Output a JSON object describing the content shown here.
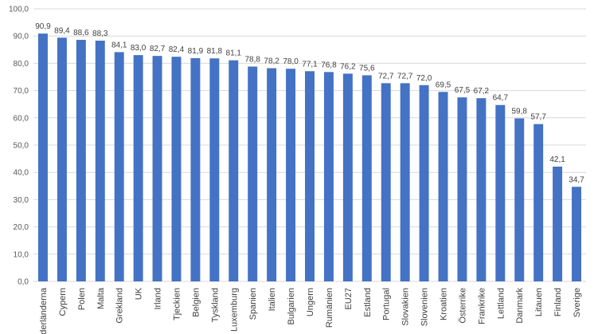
{
  "chart_data": {
    "type": "bar",
    "categories": [
      "Nederländerna",
      "Cypern",
      "Polen",
      "Malta",
      "Grekland",
      "UK",
      "Irland",
      "Tjeckien",
      "Belgien",
      "Tyskland",
      "Luxemburg",
      "Spanien",
      "Italien",
      "Bulgarien",
      "Ungern",
      "Rumänien",
      "EU27",
      "Estland",
      "Portugal",
      "Slovakien",
      "Slovenien",
      "Kroatien",
      "Österrike",
      "Frankrike",
      "Lettland",
      "Danmark",
      "Litauen",
      "Finland",
      "Sverige"
    ],
    "values": [
      90.9,
      89.4,
      88.6,
      88.3,
      84.1,
      83.0,
      82.7,
      82.4,
      81.9,
      81.8,
      81.1,
      78.8,
      78.2,
      78.0,
      77.1,
      76.8,
      76.2,
      75.6,
      72.7,
      72.7,
      72.0,
      69.5,
      67.5,
      67.2,
      64.7,
      59.8,
      57.7,
      42.1,
      34.7
    ],
    "value_labels": [
      "90,9",
      "89,4",
      "88,6",
      "88,3",
      "84,1",
      "83,0",
      "82,7",
      "82,4",
      "81,9",
      "81,8",
      "81,1",
      "78,8",
      "78,2",
      "78,0",
      "77,1",
      "76,8",
      "76,2",
      "75,6",
      "72,7",
      "72,7",
      "72,0",
      "69,5",
      "67,5",
      "67,2",
      "64,7",
      "59,8",
      "57,7",
      "42,1",
      "34,7"
    ],
    "yticks": [
      "0,0",
      "10,0",
      "20,0",
      "30,0",
      "40,0",
      "50,0",
      "60,0",
      "70,0",
      "80,0",
      "90,0",
      "100,0"
    ],
    "ylim": [
      0,
      100
    ],
    "grid": true,
    "bar_color": "#4472c4"
  }
}
